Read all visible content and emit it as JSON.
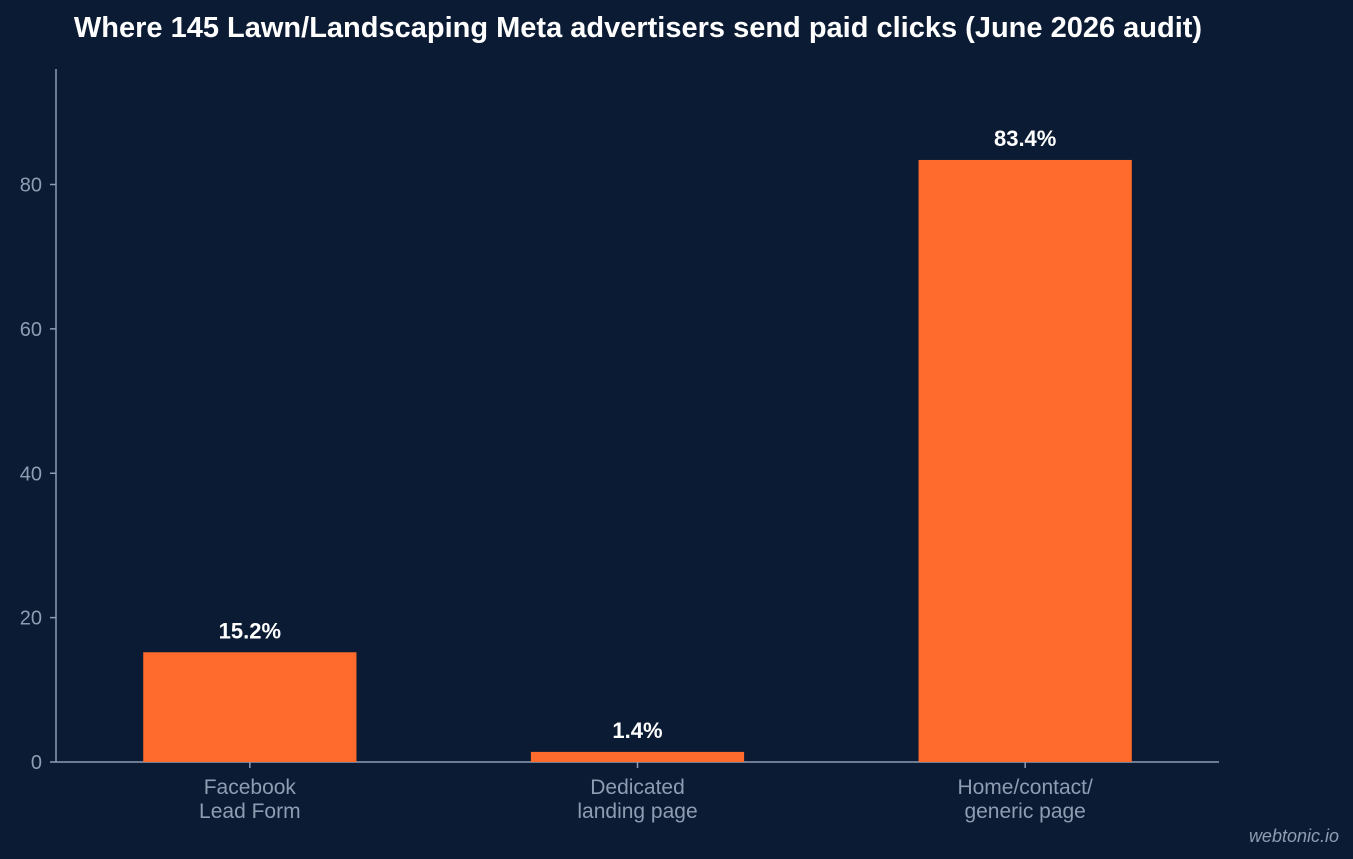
{
  "chart_data": {
    "type": "bar",
    "title": "Where 145 Lawn/Landscaping Meta advertisers send paid clicks (June 2026 audit)",
    "categories": [
      [
        "Facebook",
        "Lead Form"
      ],
      [
        "Dedicated",
        "landing page"
      ],
      [
        "Home/contact/",
        "generic page"
      ]
    ],
    "values": [
      15.2,
      1.4,
      83.4
    ],
    "data_labels": [
      "15.2%",
      "1.4%",
      "83.4%"
    ],
    "y_ticks": [
      0,
      20,
      40,
      60,
      80
    ],
    "ylim": [
      0,
      96
    ],
    "xlabel": "",
    "ylabel": "",
    "grid": false,
    "colors": {
      "bar": "#ff6b2d",
      "background": "#0b1b33",
      "axis": "#8f9db3",
      "title": "#ffffff"
    }
  },
  "watermark": "webtonic.io"
}
